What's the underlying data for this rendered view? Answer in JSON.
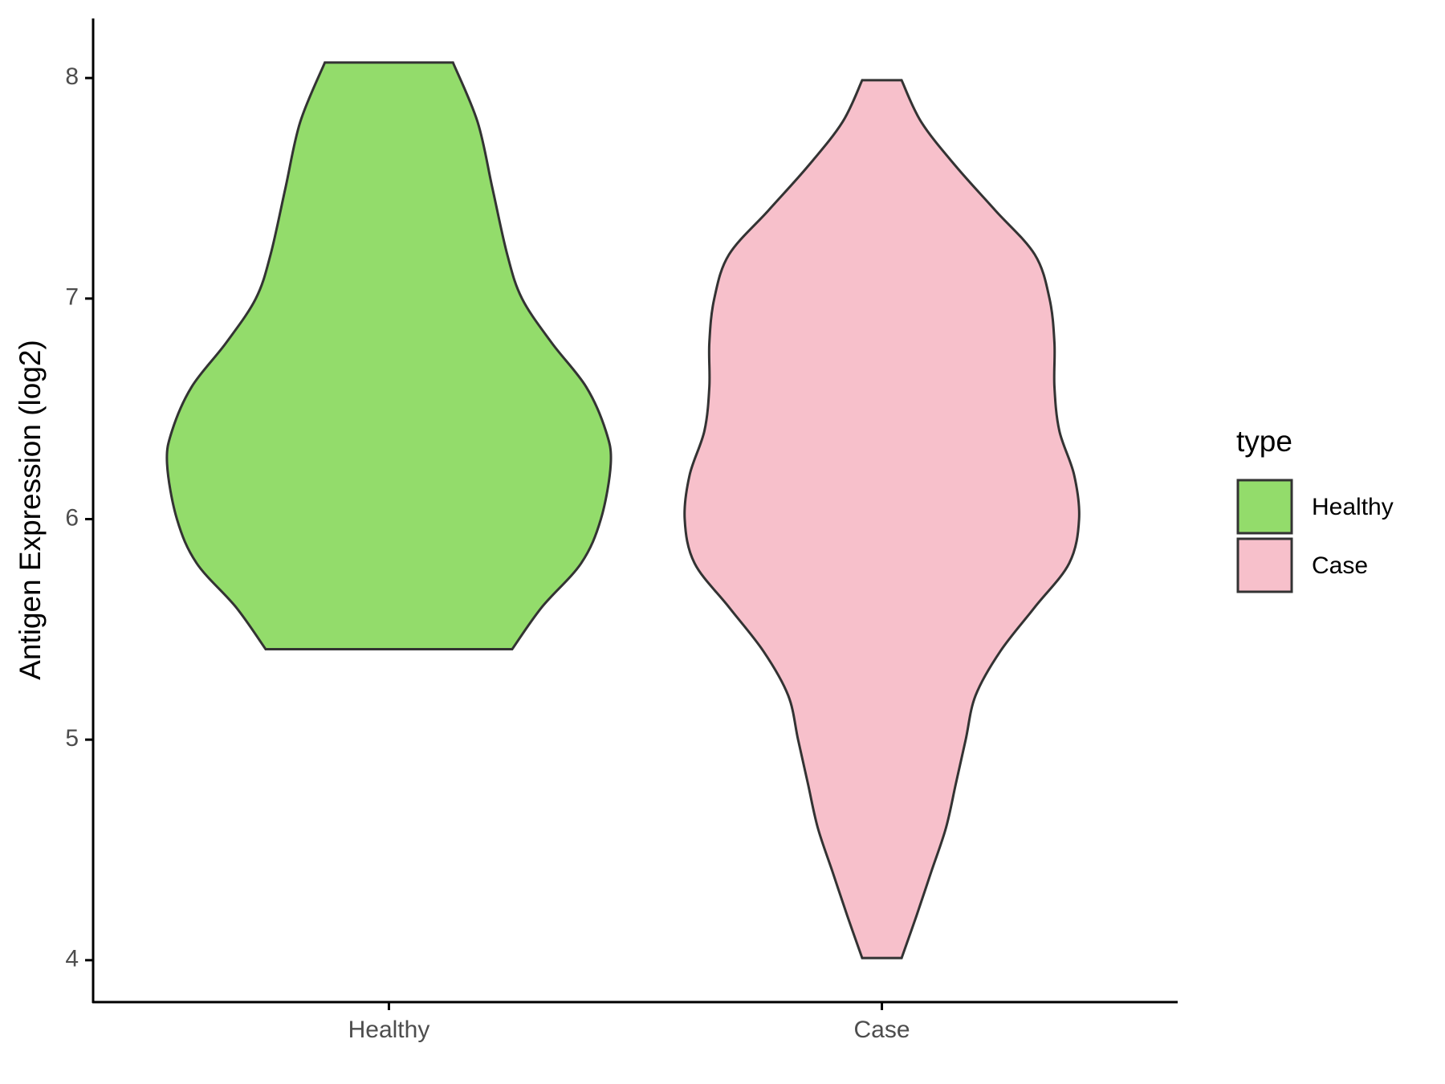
{
  "chart_data": {
    "type": "violin",
    "y_label": "Antigen Expression (log2)",
    "legend_title": "type",
    "categories": [
      "Healthy",
      "Case"
    ],
    "xlim": [
      0.4,
      2.6
    ],
    "ylim": [
      3.81,
      8.27
    ],
    "yticks": [
      4,
      5,
      6,
      7,
      8
    ],
    "series": [
      {
        "name": "Healthy",
        "color": "#93dc6b",
        "y": [
          8.07,
          7.8,
          7.5,
          7.2,
          7.0,
          6.8,
          6.6,
          6.4,
          6.25,
          6.0,
          5.8,
          5.6,
          5.41
        ],
        "half_width": [
          0.13,
          0.18,
          0.21,
          0.24,
          0.27,
          0.33,
          0.4,
          0.44,
          0.45,
          0.43,
          0.39,
          0.31,
          0.25
        ]
      },
      {
        "name": "Case",
        "color": "#f7c0cb",
        "y": [
          7.99,
          7.8,
          7.6,
          7.4,
          7.2,
          7.0,
          6.8,
          6.6,
          6.4,
          6.2,
          6.0,
          5.8,
          5.6,
          5.4,
          5.2,
          5.0,
          4.8,
          4.6,
          4.4,
          4.2,
          4.01
        ],
        "half_width": [
          0.04,
          0.08,
          0.15,
          0.23,
          0.31,
          0.34,
          0.35,
          0.35,
          0.36,
          0.39,
          0.4,
          0.38,
          0.31,
          0.24,
          0.19,
          0.17,
          0.15,
          0.13,
          0.1,
          0.07,
          0.04
        ]
      }
    ]
  }
}
